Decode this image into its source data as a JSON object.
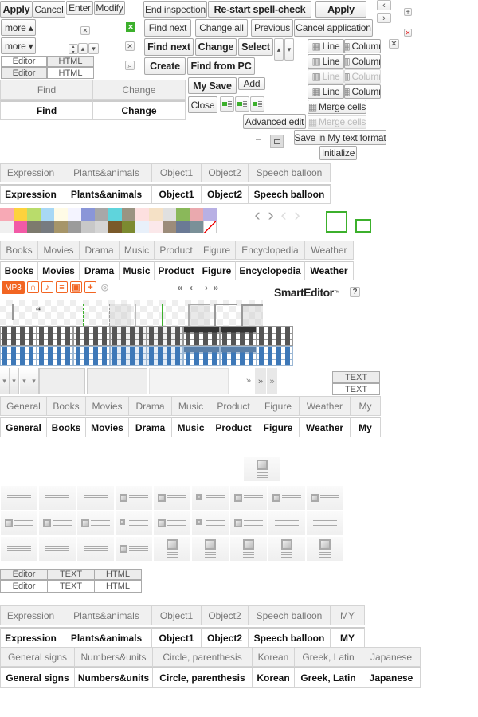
{
  "buttons": {
    "apply": "Apply",
    "cancel": "Cancel",
    "enter": "Enter",
    "modify": "Modify",
    "more_up": "more ▴",
    "more_down": "more ▾",
    "end_inspection": "End inspection",
    "restart_spell_check": "Re-start spell-check",
    "apply2": "Apply",
    "find_next": "Find next",
    "change_all": "Change all",
    "previous": "Previous",
    "cancel_application": "Cancel application",
    "find_next_bold": "Find next",
    "change": "Change",
    "select": "Select",
    "create": "Create",
    "find_from_pc": "Find from PC",
    "my_save": "My Save",
    "add": "Add",
    "close": "Close",
    "advanced_edit": "Advanced edit",
    "save_my_text_format": "Save in My text format",
    "initialize": "Initialize",
    "minus": "−"
  },
  "table_buttons": {
    "line": "Line",
    "column": "Column",
    "merge_cells": "Merge cells"
  },
  "editor_modes": [
    "Editor",
    "HTML"
  ],
  "editor_modes3": [
    "Editor",
    "TEXT",
    "HTML"
  ],
  "text_buttons": [
    "TEXT",
    "TEXT"
  ],
  "tabs": {
    "find_change": [
      "Find",
      "Change"
    ],
    "emoticon": [
      "Expression",
      "Plants&animals",
      "Object1",
      "Object2",
      "Speech balloon"
    ],
    "media": [
      "Books",
      "Movies",
      "Drama",
      "Music",
      "Product",
      "Figure",
      "Encyclopedia",
      "Weather"
    ],
    "category": [
      "General",
      "Books",
      "Movies",
      "Drama",
      "Music",
      "Product",
      "Figure",
      "Weather",
      "My"
    ],
    "emoticon_my": [
      "Expression",
      "Plants&animals",
      "Object1",
      "Object2",
      "Speech balloon",
      "MY"
    ],
    "symbols": [
      "General signs",
      "Numbers&units",
      "Circle, parenthesis",
      "Korean",
      "Greek, Latin",
      "Japanese"
    ]
  },
  "media_icons": {
    "mp3": "MP3",
    "items": [
      "headphones-icon",
      "music-note-icon",
      "list-icon",
      "tv-icon",
      "plus-icon",
      "disc-icon"
    ]
  },
  "pager": [
    "«",
    "‹",
    "›",
    "»"
  ],
  "brand": {
    "name": "SmartEditor",
    "tm": "™",
    "help": "?"
  },
  "arrows": {
    "left": "‹",
    "right": "›",
    "plus": "+",
    "close": "✕",
    "up": "▴",
    "down": "▾",
    "more": "»"
  },
  "colors": {
    "accent_green": "#3cb02c",
    "mp3_orange": "#f26522",
    "close_red": "#e02020",
    "table_blue": "#4a7bb0",
    "palette": [
      "#f7a9b5",
      "#fdd23d",
      "#b9dc6b",
      "#a8d8f5",
      "#fffbe6",
      "#f4f4ff",
      "#8a96d8",
      "#a8a8a8",
      "#5fd4dc",
      "#9a9482",
      "#fde0e0",
      "#f5e1c6",
      "#e0e0e0",
      "#8ab85a",
      "#eaa9ae",
      "#b8b0e4",
      "#f0f0f0",
      "#f25aa6",
      "#7d7a6e",
      "#777b80",
      "#a69569",
      "#9b9b9b",
      "#c8c8c8",
      "#d5d5d5",
      "#7a5a2a",
      "#7c8a30",
      "#e8f0fa",
      "#fbe8ea",
      "#9c8c7a",
      "#6b7a95",
      "#7a9098",
      "#ffffff"
    ]
  }
}
